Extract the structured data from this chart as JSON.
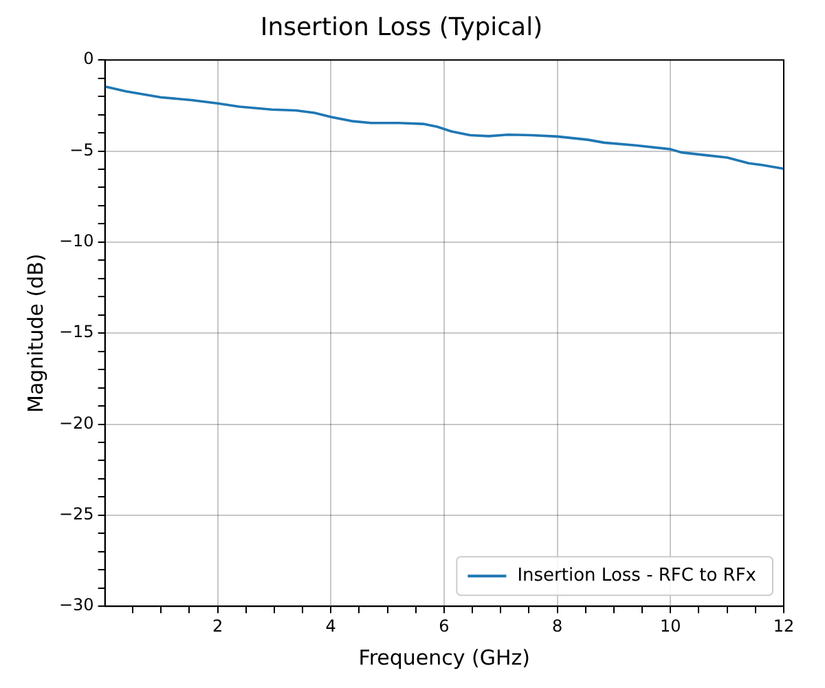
{
  "chart_data": {
    "type": "line",
    "title": "Insertion Loss (Typical)",
    "xlabel": "Frequency (GHz)",
    "ylabel": "Magnitude (dB)",
    "xlim": [
      0.01,
      12
    ],
    "ylim": [
      -30,
      0
    ],
    "xticks": [
      {
        "value": 0.5,
        "label": null
      },
      {
        "value": 1,
        "label": null
      },
      {
        "value": 1.5,
        "label": null
      },
      2,
      {
        "value": 2.5,
        "label": null
      },
      {
        "value": 3,
        "label": null
      },
      {
        "value": 3.5,
        "label": null
      },
      4,
      {
        "value": 4.5,
        "label": null
      },
      {
        "value": 5,
        "label": null
      },
      {
        "value": 5.5,
        "label": null
      },
      6,
      {
        "value": 6.5,
        "label": null
      },
      {
        "value": 7,
        "label": null
      },
      {
        "value": 7.5,
        "label": null
      },
      8,
      {
        "value": 8.5,
        "label": null
      },
      {
        "value": 9,
        "label": null
      },
      {
        "value": 9.5,
        "label": null
      },
      10,
      {
        "value": 10.5,
        "label": null
      },
      {
        "value": 11,
        "label": null
      },
      {
        "value": 11.5,
        "label": null
      },
      12
    ],
    "yticks": [
      {
        "value": -30,
        "label": "−30"
      },
      {
        "value": -29,
        "label": null
      },
      {
        "value": -28,
        "label": null
      },
      {
        "value": -27,
        "label": null
      },
      {
        "value": -26,
        "label": null
      },
      {
        "value": -25,
        "label": "−25"
      },
      {
        "value": -24,
        "label": null
      },
      {
        "value": -23,
        "label": null
      },
      {
        "value": -22,
        "label": null
      },
      {
        "value": -21,
        "label": null
      },
      {
        "value": -20,
        "label": "−20"
      },
      {
        "value": -19,
        "label": null
      },
      {
        "value": -18,
        "label": null
      },
      {
        "value": -17,
        "label": null
      },
      {
        "value": -16,
        "label": null
      },
      {
        "value": -15,
        "label": "−15"
      },
      {
        "value": -14,
        "label": null
      },
      {
        "value": -13,
        "label": null
      },
      {
        "value": -12,
        "label": null
      },
      {
        "value": -11,
        "label": null
      },
      {
        "value": -10,
        "label": "−10"
      },
      {
        "value": -9,
        "label": null
      },
      {
        "value": -8,
        "label": null
      },
      {
        "value": -7,
        "label": null
      },
      {
        "value": -6,
        "label": null
      },
      {
        "value": -5,
        "label": "−5"
      },
      {
        "value": -4,
        "label": null
      },
      {
        "value": -3,
        "label": null
      },
      {
        "value": -2,
        "label": null
      },
      {
        "value": -1,
        "label": null
      },
      0
    ],
    "grid": true,
    "legend": "bottom right",
    "marker": "none",
    "line_style": "solid",
    "series": [
      {
        "name": "Insertion Loss - RFC to RFx",
        "color": "#1f77b4",
        "x": [
          0.01,
          0.38,
          1,
          1.54,
          2,
          2.38,
          2.96,
          3.38,
          3.71,
          4,
          4.38,
          4.71,
          5.21,
          5.63,
          5.88,
          6.13,
          6.46,
          6.79,
          7.13,
          7.54,
          8,
          8.54,
          8.83,
          9.38,
          10,
          10.2,
          10.63,
          11,
          11.38,
          11.63,
          12
        ],
        "values": [
          -1.46,
          -1.72,
          -2.05,
          -2.2,
          -2.38,
          -2.56,
          -2.72,
          -2.77,
          -2.9,
          -3.13,
          -3.36,
          -3.46,
          -3.46,
          -3.51,
          -3.67,
          -3.92,
          -4.13,
          -4.18,
          -4.1,
          -4.13,
          -4.2,
          -4.38,
          -4.54,
          -4.69,
          -4.9,
          -5.08,
          -5.23,
          -5.36,
          -5.67,
          -5.77,
          -5.97
        ]
      }
    ]
  }
}
